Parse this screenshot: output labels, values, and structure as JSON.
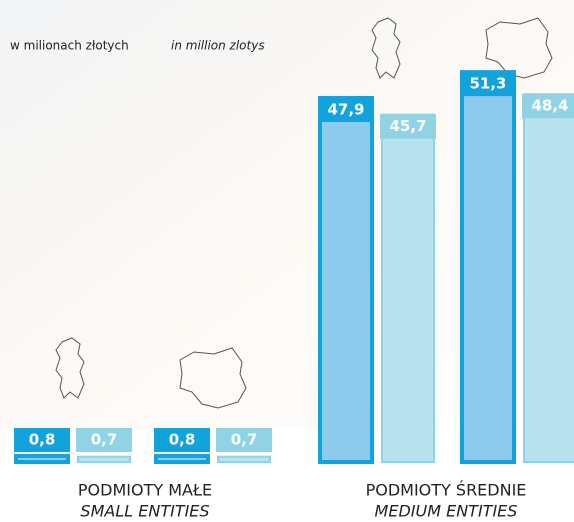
{
  "chart_data": {
    "type": "bar",
    "subtitle": "w milionach złotych",
    "subtitle_en": "in million zlotys",
    "categories": [
      null,
      null,
      null,
      null
    ],
    "groups": [
      {
        "label": "PODMIOTY MAŁE",
        "label_en": "SMALL ENTITIES"
      },
      {
        "label": "PODMIOTY ŚREDNIE",
        "label_en": "MEDIUM ENTITIES"
      }
    ],
    "series": [
      {
        "color": "#13a3dc",
        "values": [
          0.8,
          0.8,
          47.9,
          51.3
        ],
        "value_labels": [
          "0,8",
          "0,8",
          "47,9",
          "51,3"
        ]
      },
      {
        "color": "#8fd3e4",
        "values": [
          0.7,
          0.7,
          45.7,
          48.4
        ],
        "value_labels": [
          "0,7",
          "0,7",
          "45,7",
          "48,4"
        ]
      }
    ],
    "ylim": [
      0,
      55
    ]
  }
}
